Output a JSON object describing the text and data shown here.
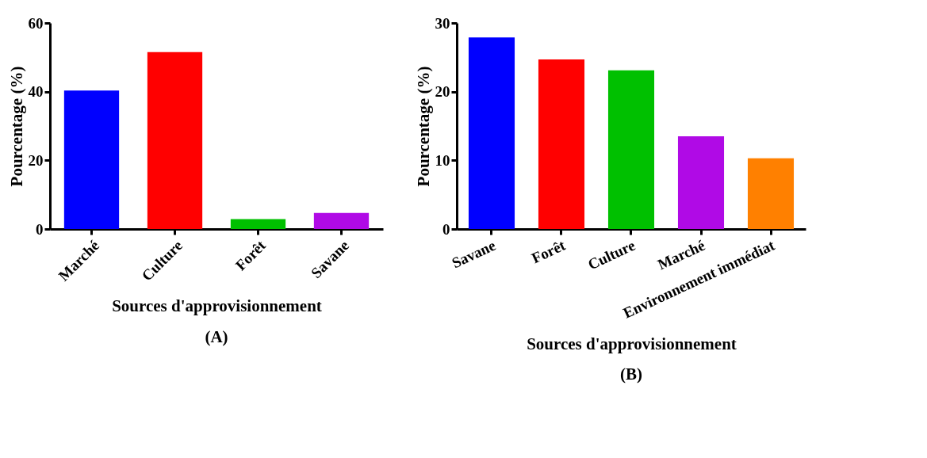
{
  "chart_data": [
    {
      "type": "bar",
      "xlabel": "Sources d'approvisionnement",
      "ylabel": "Pourcentage (%)",
      "categories": [
        "Marché",
        "Culture",
        "Forêt",
        "Savane"
      ],
      "values": [
        40.3,
        51.5,
        2.9,
        4.7
      ],
      "colors": [
        "#0000ff",
        "#ff0000",
        "#00c000",
        "#b00ae6"
      ],
      "ylim": [
        0,
        60
      ],
      "yticks": [
        0,
        20,
        40,
        60
      ],
      "grid": false,
      "annotations": [
        "(A)"
      ]
    },
    {
      "type": "bar",
      "xlabel": "Sources d'approvisionnement",
      "ylabel": "Pourcentage (%)",
      "categories": [
        "Savane",
        "Forêt",
        "Culture",
        "Marché",
        "Environnement immédiat"
      ],
      "values": [
        27.9,
        24.7,
        23.1,
        13.5,
        10.3
      ],
      "colors": [
        "#0000ff",
        "#ff0000",
        "#00c000",
        "#b00ae6",
        "#ff8000"
      ],
      "ylim": [
        0,
        30
      ],
      "yticks": [
        0,
        10,
        20,
        30
      ],
      "grid": false,
      "annotations": [
        "(B)"
      ]
    }
  ]
}
